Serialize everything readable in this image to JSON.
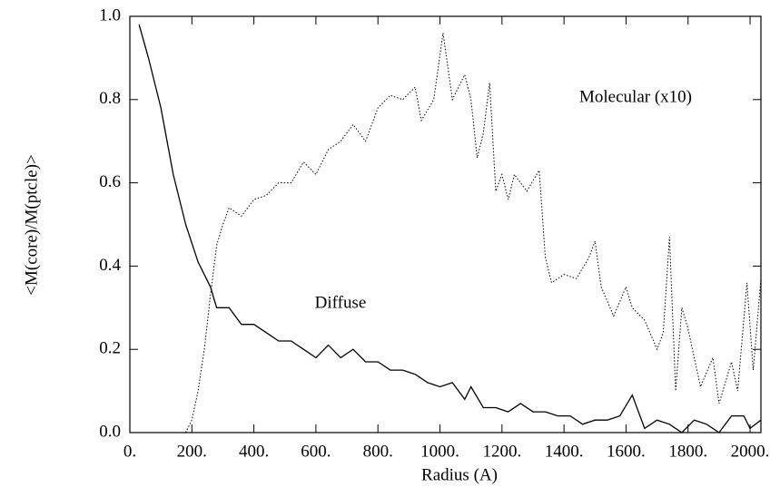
{
  "chart_data": {
    "type": "line",
    "xlabel": "Radius (A)",
    "ylabel": "<M(core)/M(ptcle)>",
    "xlim": [
      0,
      2035
    ],
    "ylim": [
      0,
      1.0
    ],
    "xticks": [
      {
        "value": 0,
        "label": "0."
      },
      {
        "value": 200,
        "label": "200."
      },
      {
        "value": 400,
        "label": "400."
      },
      {
        "value": 600,
        "label": "600."
      },
      {
        "value": 800,
        "label": "800."
      },
      {
        "value": 1000,
        "label": "1000."
      },
      {
        "value": 1200,
        "label": "1200."
      },
      {
        "value": 1400,
        "label": "1400."
      },
      {
        "value": 1600,
        "label": "1600."
      },
      {
        "value": 1800,
        "label": "1800."
      },
      {
        "value": 2000,
        "label": "2000."
      }
    ],
    "yticks": [
      {
        "value": 0,
        "label": "0.0"
      },
      0.2,
      0.4,
      0.6,
      0.8,
      {
        "value": 1,
        "label": "1.0"
      }
    ],
    "series": [
      {
        "name": "Diffuse",
        "color": "#000000",
        "dash": "solid",
        "x": [
          30,
          60,
          100,
          140,
          180,
          220,
          260,
          280,
          320,
          360,
          400,
          440,
          480,
          520,
          560,
          600,
          640,
          680,
          720,
          760,
          800,
          840,
          880,
          920,
          960,
          1000,
          1040,
          1080,
          1100,
          1140,
          1180,
          1220,
          1260,
          1300,
          1340,
          1380,
          1420,
          1460,
          1500,
          1540,
          1580,
          1620,
          1660,
          1700,
          1740,
          1780,
          1820,
          1860,
          1900,
          1940,
          1980,
          2000,
          2035
        ],
        "values": [
          0.98,
          0.9,
          0.78,
          0.62,
          0.5,
          0.41,
          0.35,
          0.3,
          0.3,
          0.26,
          0.26,
          0.24,
          0.22,
          0.22,
          0.2,
          0.18,
          0.21,
          0.18,
          0.2,
          0.17,
          0.17,
          0.15,
          0.15,
          0.14,
          0.12,
          0.11,
          0.12,
          0.08,
          0.11,
          0.06,
          0.06,
          0.05,
          0.07,
          0.05,
          0.05,
          0.04,
          0.04,
          0.02,
          0.03,
          0.03,
          0.04,
          0.09,
          0.01,
          0.03,
          0.02,
          0.0,
          0.03,
          0.02,
          0.0,
          0.04,
          0.04,
          0.01,
          0.03
        ]
      },
      {
        "name": "Molecular (x10)",
        "color": "#000000",
        "dash": "dotted",
        "x": [
          180,
          200,
          220,
          240,
          260,
          280,
          300,
          320,
          360,
          400,
          440,
          480,
          520,
          560,
          600,
          640,
          680,
          720,
          760,
          800,
          840,
          880,
          920,
          940,
          980,
          1010,
          1040,
          1080,
          1100,
          1120,
          1140,
          1160,
          1180,
          1200,
          1220,
          1240,
          1280,
          1320,
          1340,
          1360,
          1400,
          1440,
          1480,
          1500,
          1520,
          1560,
          1600,
          1620,
          1660,
          1700,
          1720,
          1740,
          1760,
          1780,
          1800,
          1840,
          1880,
          1900,
          1940,
          1960,
          1990,
          2010,
          2035
        ],
        "values": [
          0.0,
          0.03,
          0.1,
          0.2,
          0.33,
          0.45,
          0.5,
          0.54,
          0.52,
          0.56,
          0.57,
          0.6,
          0.6,
          0.65,
          0.62,
          0.68,
          0.7,
          0.74,
          0.7,
          0.78,
          0.81,
          0.8,
          0.83,
          0.75,
          0.8,
          0.96,
          0.8,
          0.86,
          0.8,
          0.66,
          0.72,
          0.84,
          0.58,
          0.62,
          0.56,
          0.62,
          0.58,
          0.63,
          0.42,
          0.36,
          0.38,
          0.37,
          0.42,
          0.46,
          0.35,
          0.28,
          0.35,
          0.3,
          0.27,
          0.2,
          0.24,
          0.47,
          0.1,
          0.3,
          0.25,
          0.11,
          0.18,
          0.07,
          0.17,
          0.1,
          0.36,
          0.15,
          0.37
        ]
      }
    ]
  }
}
